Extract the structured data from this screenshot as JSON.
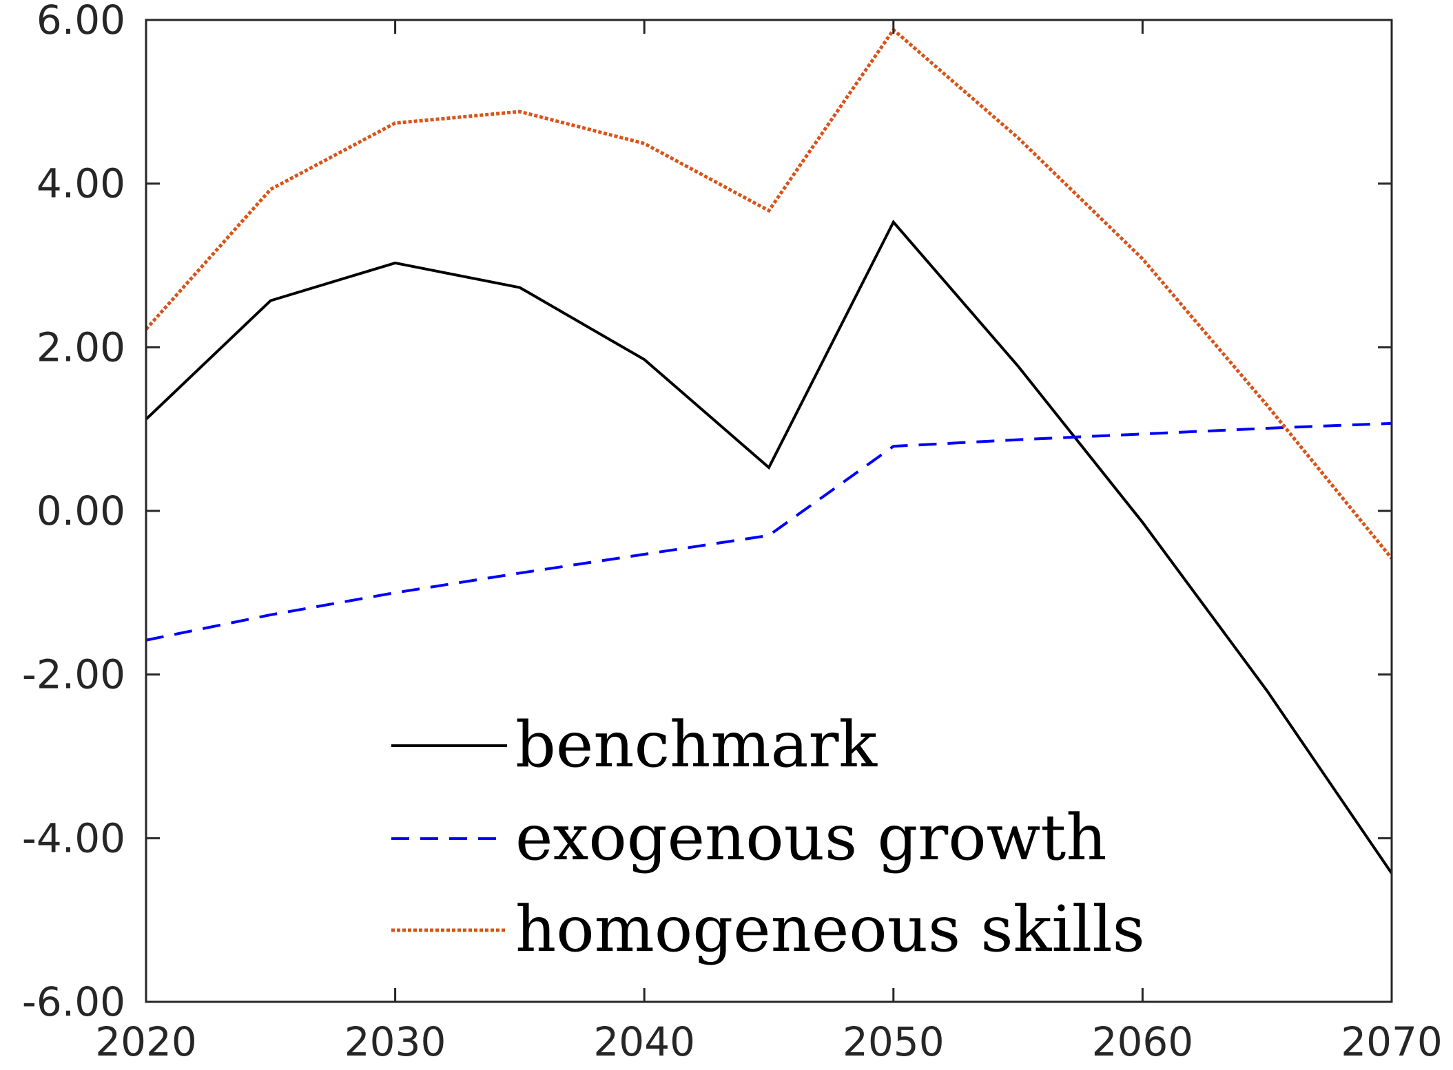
{
  "chart_data": {
    "type": "line",
    "title": "",
    "xlabel": "",
    "ylabel": "",
    "x": [
      2020,
      2025,
      2030,
      2035,
      2040,
      2045,
      2050,
      2055,
      2060,
      2065,
      2070
    ],
    "xlim": [
      2020,
      2070
    ],
    "ylim": [
      -6,
      6
    ],
    "grid": false,
    "legend_position": "bottom-center",
    "x_ticks": [
      2020,
      2030,
      2040,
      2050,
      2060,
      2070
    ],
    "x_tick_labels": [
      "2020",
      "2030",
      "2040",
      "2050",
      "2060",
      "2070"
    ],
    "y_ticks": [
      6,
      4,
      2,
      0,
      -2,
      -4,
      -6
    ],
    "y_tick_labels": [
      "6.00",
      "4.00",
      "2.00",
      "0.00",
      "-2.00",
      "-4.00",
      "-6.00"
    ],
    "series": [
      {
        "name": "benchmark",
        "color": "#000000",
        "style": "solid",
        "values": [
          1.12,
          2.57,
          3.03,
          2.73,
          1.85,
          0.53,
          3.53,
          1.77,
          -0.14,
          -2.2,
          -4.43
        ]
      },
      {
        "name": "exogenous growth",
        "color": "#0000ff",
        "style": "dashed",
        "values": [
          -1.58,
          -1.27,
          -1.0,
          -0.76,
          -0.53,
          -0.3,
          0.79,
          0.87,
          0.94,
          1.01,
          1.07
        ]
      },
      {
        "name": "homogeneous skills",
        "color": "#d95319",
        "style": "dotted",
        "values": [
          2.22,
          3.93,
          4.74,
          4.88,
          4.49,
          3.67,
          5.88,
          4.56,
          3.08,
          1.29,
          -0.58
        ]
      }
    ]
  }
}
